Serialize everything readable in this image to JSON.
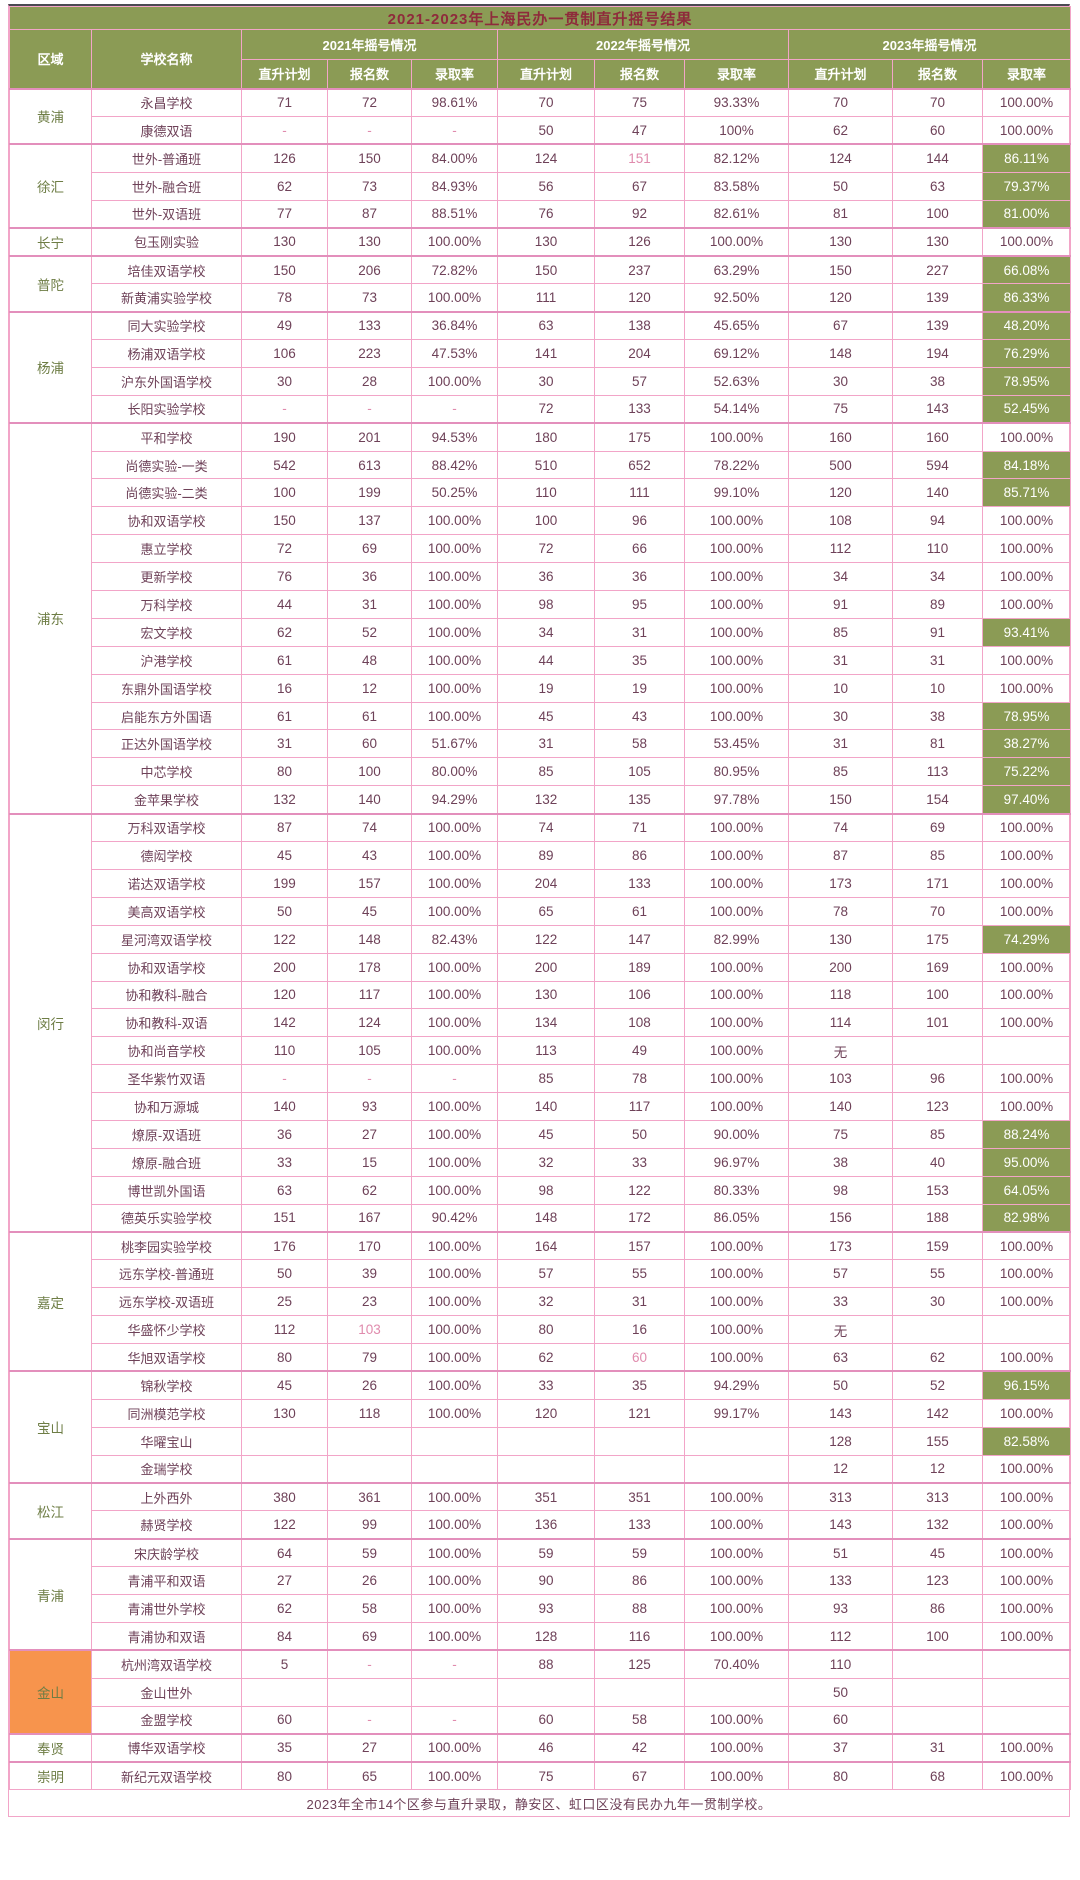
{
  "title": "2021-2023年上海民办一贯制直升摇号结果",
  "header": {
    "region": "区域",
    "school": "学校名称",
    "year_groups": [
      "2021年摇号情况",
      "2022年摇号情况",
      "2023年摇号情况"
    ],
    "sub_columns": [
      "直升计划",
      "报名数",
      "录取率"
    ]
  },
  "footer": "2023年全市14个区参与直升录取，静安区、虹口区没有民办九年一贯制学校。",
  "colors": {
    "header_bg": "#8B9B55",
    "header_text": "#FFFFFF",
    "title_text": "#8E2B3B",
    "highlight_bg": "#8B9B55",
    "highlight_text": "#FFFFFF",
    "border": "#F2A5C8",
    "data_text": "#6E4158",
    "pink_text": "#E08BAD",
    "district_text": "#6E7D45",
    "jinshan_bg": "#F7944D"
  },
  "districts": [
    {
      "name": "黄浦",
      "rows": [
        {
          "school": "永昌学校",
          "values": [
            "71",
            "72",
            "98.61%",
            "70",
            "75",
            "93.33%",
            "70",
            "70",
            "100.00%"
          ]
        },
        {
          "school": "康德双语",
          "values": [
            "-",
            "-",
            "-",
            "50",
            "47",
            "100%",
            "62",
            "60",
            "100.00%"
          ]
        }
      ]
    },
    {
      "name": "徐汇",
      "rows": [
        {
          "school": "世外-普通班",
          "values": [
            "126",
            "150",
            "84.00%",
            "124",
            "151",
            "82.12%",
            "124",
            "144",
            "86.11%"
          ],
          "pink": [
            4
          ]
        },
        {
          "school": "世外-融合班",
          "values": [
            "62",
            "73",
            "84.93%",
            "56",
            "67",
            "83.58%",
            "50",
            "63",
            "79.37%"
          ]
        },
        {
          "school": "世外-双语班",
          "values": [
            "77",
            "87",
            "88.51%",
            "76",
            "92",
            "82.61%",
            "81",
            "100",
            "81.00%"
          ]
        }
      ]
    },
    {
      "name": "长宁",
      "rows": [
        {
          "school": "包玉刚实验",
          "values": [
            "130",
            "130",
            "100.00%",
            "130",
            "126",
            "100.00%",
            "130",
            "130",
            "100.00%"
          ]
        }
      ]
    },
    {
      "name": "普陀",
      "rows": [
        {
          "school": "培佳双语学校",
          "values": [
            "150",
            "206",
            "72.82%",
            "150",
            "237",
            "63.29%",
            "150",
            "227",
            "66.08%"
          ]
        },
        {
          "school": "新黄浦实验学校",
          "values": [
            "78",
            "73",
            "100.00%",
            "111",
            "120",
            "92.50%",
            "120",
            "139",
            "86.33%"
          ]
        }
      ]
    },
    {
      "name": "杨浦",
      "rows": [
        {
          "school": "同大实验学校",
          "values": [
            "49",
            "133",
            "36.84%",
            "63",
            "138",
            "45.65%",
            "67",
            "139",
            "48.20%"
          ]
        },
        {
          "school": "杨浦双语学校",
          "values": [
            "106",
            "223",
            "47.53%",
            "141",
            "204",
            "69.12%",
            "148",
            "194",
            "76.29%"
          ]
        },
        {
          "school": "沪东外国语学校",
          "values": [
            "30",
            "28",
            "100.00%",
            "30",
            "57",
            "52.63%",
            "30",
            "38",
            "78.95%"
          ]
        },
        {
          "school": "长阳实验学校",
          "values": [
            "-",
            "-",
            "-",
            "72",
            "133",
            "54.14%",
            "75",
            "143",
            "52.45%"
          ]
        }
      ]
    },
    {
      "name": "浦东",
      "rows": [
        {
          "school": "平和学校",
          "values": [
            "190",
            "201",
            "94.53%",
            "180",
            "175",
            "100.00%",
            "160",
            "160",
            "100.00%"
          ]
        },
        {
          "school": "尚德实验-一类",
          "values": [
            "542",
            "613",
            "88.42%",
            "510",
            "652",
            "78.22%",
            "500",
            "594",
            "84.18%"
          ]
        },
        {
          "school": "尚德实验-二类",
          "values": [
            "100",
            "199",
            "50.25%",
            "110",
            "111",
            "99.10%",
            "120",
            "140",
            "85.71%"
          ]
        },
        {
          "school": "协和双语学校",
          "values": [
            "150",
            "137",
            "100.00%",
            "100",
            "96",
            "100.00%",
            "108",
            "94",
            "100.00%"
          ]
        },
        {
          "school": "惠立学校",
          "values": [
            "72",
            "69",
            "100.00%",
            "72",
            "66",
            "100.00%",
            "112",
            "110",
            "100.00%"
          ]
        },
        {
          "school": "更新学校",
          "values": [
            "76",
            "36",
            "100.00%",
            "36",
            "36",
            "100.00%",
            "34",
            "34",
            "100.00%"
          ]
        },
        {
          "school": "万科学校",
          "values": [
            "44",
            "31",
            "100.00%",
            "98",
            "95",
            "100.00%",
            "91",
            "89",
            "100.00%"
          ]
        },
        {
          "school": "宏文学校",
          "values": [
            "62",
            "52",
            "100.00%",
            "34",
            "31",
            "100.00%",
            "85",
            "91",
            "93.41%"
          ]
        },
        {
          "school": "沪港学校",
          "values": [
            "61",
            "48",
            "100.00%",
            "44",
            "35",
            "100.00%",
            "31",
            "31",
            "100.00%"
          ]
        },
        {
          "school": "东鼎外国语学校",
          "values": [
            "16",
            "12",
            "100.00%",
            "19",
            "19",
            "100.00%",
            "10",
            "10",
            "100.00%"
          ]
        },
        {
          "school": "启能东方外国语",
          "values": [
            "61",
            "61",
            "100.00%",
            "45",
            "43",
            "100.00%",
            "30",
            "38",
            "78.95%"
          ]
        },
        {
          "school": "正达外国语学校",
          "values": [
            "31",
            "60",
            "51.67%",
            "31",
            "58",
            "53.45%",
            "31",
            "81",
            "38.27%"
          ]
        },
        {
          "school": "中芯学校",
          "values": [
            "80",
            "100",
            "80.00%",
            "85",
            "105",
            "80.95%",
            "85",
            "113",
            "75.22%"
          ]
        },
        {
          "school": "金苹果学校",
          "values": [
            "132",
            "140",
            "94.29%",
            "132",
            "135",
            "97.78%",
            "150",
            "154",
            "97.40%"
          ]
        }
      ]
    },
    {
      "name": "闵行",
      "rows": [
        {
          "school": "万科双语学校",
          "values": [
            "87",
            "74",
            "100.00%",
            "74",
            "71",
            "100.00%",
            "74",
            "69",
            "100.00%"
          ]
        },
        {
          "school": "德闳学校",
          "values": [
            "45",
            "43",
            "100.00%",
            "89",
            "86",
            "100.00%",
            "87",
            "85",
            "100.00%"
          ]
        },
        {
          "school": "诺达双语学校",
          "values": [
            "199",
            "157",
            "100.00%",
            "204",
            "133",
            "100.00%",
            "173",
            "171",
            "100.00%"
          ]
        },
        {
          "school": "美高双语学校",
          "values": [
            "50",
            "45",
            "100.00%",
            "65",
            "61",
            "100.00%",
            "78",
            "70",
            "100.00%"
          ]
        },
        {
          "school": "星河湾双语学校",
          "values": [
            "122",
            "148",
            "82.43%",
            "122",
            "147",
            "82.99%",
            "130",
            "175",
            "74.29%"
          ]
        },
        {
          "school": "协和双语学校",
          "values": [
            "200",
            "178",
            "100.00%",
            "200",
            "189",
            "100.00%",
            "200",
            "169",
            "100.00%"
          ]
        },
        {
          "school": "协和教科-融合",
          "values": [
            "120",
            "117",
            "100.00%",
            "130",
            "106",
            "100.00%",
            "118",
            "100",
            "100.00%"
          ]
        },
        {
          "school": "协和教科-双语",
          "values": [
            "142",
            "124",
            "100.00%",
            "134",
            "108",
            "100.00%",
            "114",
            "101",
            "100.00%"
          ]
        },
        {
          "school": "协和尚音学校",
          "values": [
            "110",
            "105",
            "100.00%",
            "113",
            "49",
            "100.00%",
            "无",
            "",
            ""
          ]
        },
        {
          "school": "圣华紫竹双语",
          "values": [
            "-",
            "-",
            "-",
            "85",
            "78",
            "100.00%",
            "103",
            "96",
            "100.00%"
          ]
        },
        {
          "school": "协和万源城",
          "values": [
            "140",
            "93",
            "100.00%",
            "140",
            "117",
            "100.00%",
            "140",
            "123",
            "100.00%"
          ]
        },
        {
          "school": "燎原-双语班",
          "values": [
            "36",
            "27",
            "100.00%",
            "45",
            "50",
            "90.00%",
            "75",
            "85",
            "88.24%"
          ]
        },
        {
          "school": "燎原-融合班",
          "values": [
            "33",
            "15",
            "100.00%",
            "32",
            "33",
            "96.97%",
            "38",
            "40",
            "95.00%"
          ]
        },
        {
          "school": "博世凯外国语",
          "values": [
            "63",
            "62",
            "100.00%",
            "98",
            "122",
            "80.33%",
            "98",
            "153",
            "64.05%"
          ]
        },
        {
          "school": "德英乐实验学校",
          "values": [
            "151",
            "167",
            "90.42%",
            "148",
            "172",
            "86.05%",
            "156",
            "188",
            "82.98%"
          ]
        }
      ]
    },
    {
      "name": "嘉定",
      "rows": [
        {
          "school": "桃李园实验学校",
          "values": [
            "176",
            "170",
            "100.00%",
            "164",
            "157",
            "100.00%",
            "173",
            "159",
            "100.00%"
          ]
        },
        {
          "school": "远东学校-普通班",
          "values": [
            "50",
            "39",
            "100.00%",
            "57",
            "55",
            "100.00%",
            "57",
            "55",
            "100.00%"
          ]
        },
        {
          "school": "远东学校-双语班",
          "values": [
            "25",
            "23",
            "100.00%",
            "32",
            "31",
            "100.00%",
            "33",
            "30",
            "100.00%"
          ]
        },
        {
          "school": "华盛怀少学校",
          "values": [
            "112",
            "103",
            "100.00%",
            "80",
            "16",
            "100.00%",
            "无",
            "",
            ""
          ],
          "pink": [
            1
          ]
        },
        {
          "school": "华旭双语学校",
          "values": [
            "80",
            "79",
            "100.00%",
            "62",
            "60",
            "100.00%",
            "63",
            "62",
            "100.00%"
          ],
          "pink": [
            4
          ]
        }
      ]
    },
    {
      "name": "宝山",
      "rows": [
        {
          "school": "锦秋学校",
          "values": [
            "45",
            "26",
            "100.00%",
            "33",
            "35",
            "94.29%",
            "50",
            "52",
            "96.15%"
          ]
        },
        {
          "school": "同洲模范学校",
          "values": [
            "130",
            "118",
            "100.00%",
            "120",
            "121",
            "99.17%",
            "143",
            "142",
            "100.00%"
          ]
        },
        {
          "school": "华曜宝山",
          "values": [
            "",
            "",
            "",
            "",
            "",
            "",
            "128",
            "155",
            "82.58%"
          ]
        },
        {
          "school": "金瑞学校",
          "values": [
            "",
            "",
            "",
            "",
            "",
            "",
            "12",
            "12",
            "100.00%"
          ]
        }
      ]
    },
    {
      "name": "松江",
      "rows": [
        {
          "school": "上外西外",
          "values": [
            "380",
            "361",
            "100.00%",
            "351",
            "351",
            "100.00%",
            "313",
            "313",
            "100.00%"
          ]
        },
        {
          "school": "赫贤学校",
          "values": [
            "122",
            "99",
            "100.00%",
            "136",
            "133",
            "100.00%",
            "143",
            "132",
            "100.00%"
          ]
        }
      ]
    },
    {
      "name": "青浦",
      "rows": [
        {
          "school": "宋庆龄学校",
          "values": [
            "64",
            "59",
            "100.00%",
            "59",
            "59",
            "100.00%",
            "51",
            "45",
            "100.00%"
          ]
        },
        {
          "school": "青浦平和双语",
          "values": [
            "27",
            "26",
            "100.00%",
            "90",
            "86",
            "100.00%",
            "133",
            "123",
            "100.00%"
          ]
        },
        {
          "school": "青浦世外学校",
          "values": [
            "62",
            "58",
            "100.00%",
            "93",
            "88",
            "100.00%",
            "93",
            "86",
            "100.00%"
          ]
        },
        {
          "school": "青浦协和双语",
          "values": [
            "84",
            "69",
            "100.00%",
            "128",
            "116",
            "100.00%",
            "112",
            "100",
            "100.00%"
          ]
        }
      ]
    },
    {
      "name": "金山",
      "district_bg": "#F7944D",
      "rows": [
        {
          "school": "杭州湾双语学校",
          "values": [
            "5",
            "-",
            "-",
            "88",
            "125",
            "70.40%",
            "110",
            "",
            ""
          ]
        },
        {
          "school": "金山世外",
          "values": [
            "",
            "",
            "",
            "",
            "",
            "",
            "50",
            "",
            ""
          ]
        },
        {
          "school": "金盟学校",
          "values": [
            "60",
            "-",
            "-",
            "60",
            "58",
            "100.00%",
            "60",
            "",
            ""
          ]
        }
      ]
    },
    {
      "name": "奉贤",
      "rows": [
        {
          "school": "博华双语学校",
          "values": [
            "35",
            "27",
            "100.00%",
            "46",
            "42",
            "100.00%",
            "37",
            "31",
            "100.00%"
          ]
        }
      ]
    },
    {
      "name": "崇明",
      "rows": [
        {
          "school": "新纪元双语学校",
          "values": [
            "80",
            "65",
            "100.00%",
            "75",
            "67",
            "100.00%",
            "80",
            "68",
            "100.00%"
          ]
        }
      ]
    }
  ]
}
